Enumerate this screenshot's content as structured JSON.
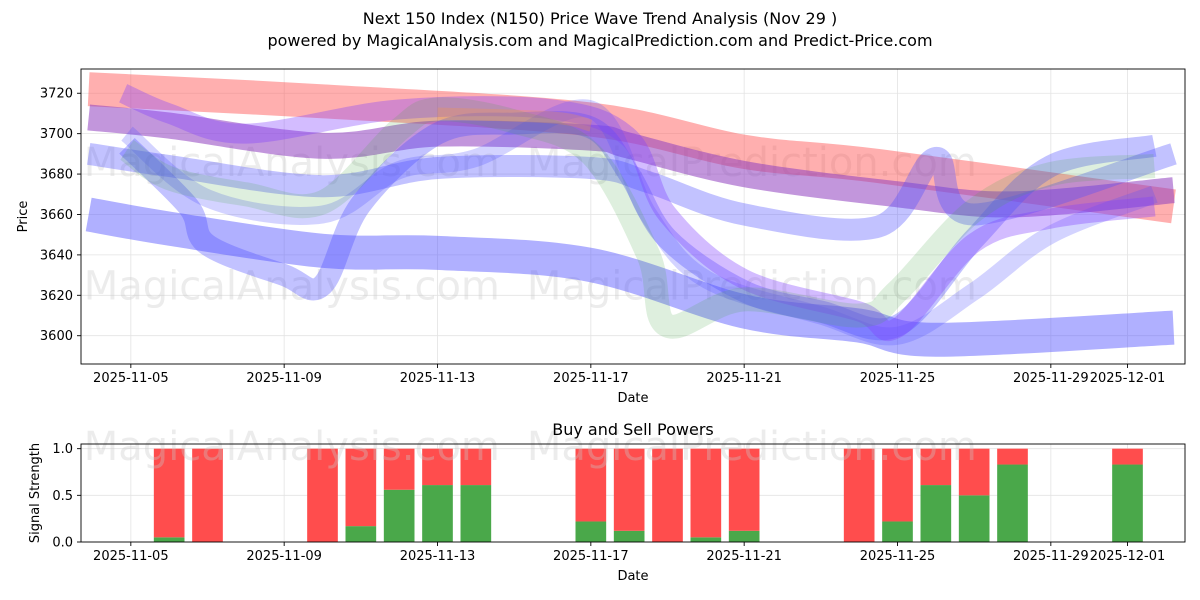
{
  "title": "Next 150 Index (N150) Price Wave Trend Analysis (Nov 29 )",
  "subtitle": "powered by MagicalAnalysis.com and MagicalPrediction.com and Predict-Price.com",
  "watermarks": [
    "MagicalAnalysis.com",
    "MagicalPrediction.com"
  ],
  "colors": {
    "red": "#ff4d4d",
    "green": "#4aa84a",
    "blue": "#5050ff",
    "purple": "#9040c0",
    "lightgreen": "#b8e0b0"
  },
  "chart_data": [
    {
      "type": "line",
      "title": "",
      "xlabel": "Date",
      "ylabel": "Price",
      "xlim": [
        "2025-11-03.7",
        "2025-12-02.5"
      ],
      "ylim": [
        3586,
        3732
      ],
      "x_ticks": [
        "2025-11-05",
        "2025-11-09",
        "2025-11-13",
        "2025-11-17",
        "2025-11-21",
        "2025-11-25",
        "2025-11-29",
        "2025-12-01"
      ],
      "y_ticks": [
        3600,
        3620,
        3640,
        3660,
        3680,
        3700,
        3720
      ],
      "grid": true,
      "series": [
        {
          "name": "red band",
          "color": "#ff4d4d",
          "width": 34,
          "opacity": 0.45,
          "points": [
            [
              "2025-11-03.9",
              3722
            ],
            [
              "2025-11-10",
              3716
            ],
            [
              "2025-11-17",
              3707
            ],
            [
              "2025-11-21",
              3691
            ],
            [
              "2025-11-24.5",
              3684
            ],
            [
              "2025-12-02.2",
              3664
            ]
          ]
        },
        {
          "name": "purple band",
          "color": "#9040c0",
          "width": 26,
          "opacity": 0.55,
          "points": [
            [
              "2025-11-03.9",
              3708
            ],
            [
              "2025-11-06",
              3704
            ],
            [
              "2025-11-10",
              3694
            ],
            [
              "2025-11-13",
              3700
            ],
            [
              "2025-11-17",
              3698
            ],
            [
              "2025-11-18",
              3694
            ],
            [
              "2025-11-21",
              3680
            ],
            [
              "2025-11-25",
              3670
            ],
            [
              "2025-11-28",
              3665
            ],
            [
              "2025-12-02.2",
              3672
            ]
          ]
        },
        {
          "name": "blue wide band",
          "color": "#5050ff",
          "width": 34,
          "opacity": 0.45,
          "points": [
            [
              "2025-11-03.9",
              3660
            ],
            [
              "2025-11-06",
              3653
            ],
            [
              "2025-11-10",
              3642
            ],
            [
              "2025-11-13",
              3641
            ],
            [
              "2025-11-17",
              3635
            ],
            [
              "2025-11-21",
              3612
            ],
            [
              "2025-11-24",
              3605
            ],
            [
              "2025-11-26",
              3598
            ],
            [
              "2025-12-02.2",
              3604
            ]
          ]
        },
        {
          "name": "blue band 2",
          "color": "#5050ff",
          "width": 22,
          "opacity": 0.35,
          "points": [
            [
              "2025-11-03.9",
              3690
            ],
            [
              "2025-11-06",
              3684
            ],
            [
              "2025-11-10",
              3674
            ],
            [
              "2025-11-13",
              3683
            ],
            [
              "2025-11-17",
              3683
            ],
            [
              "2025-11-18.5",
              3676
            ],
            [
              "2025-11-21",
              3660
            ],
            [
              "2025-11-24.5",
              3654
            ],
            [
              "2025-11-26",
              3688
            ],
            [
              "2025-11-27",
              3660
            ],
            [
              "2025-12-02.2",
              3690
            ]
          ]
        },
        {
          "name": "blue wave 1",
          "color": "#5050ff",
          "width": 22,
          "opacity": 0.35,
          "points": [
            [
              "2025-11-04.9",
              3694
            ],
            [
              "2025-11-06.5",
              3664
            ],
            [
              "2025-11-07",
              3645
            ],
            [
              "2025-11-09",
              3630
            ],
            [
              "2025-11-10",
              3625
            ],
            [
              "2025-11-11",
              3665
            ],
            [
              "2025-11-13",
              3700
            ],
            [
              "2025-11-15",
              3705
            ],
            [
              "2025-11-17",
              3703
            ],
            [
              "2025-11-18",
              3680
            ],
            [
              "2025-11-19",
              3648
            ],
            [
              "2025-11-21",
              3622
            ],
            [
              "2025-11-23",
              3612
            ],
            [
              "2025-11-25",
              3605
            ],
            [
              "2025-11-27",
              3648
            ],
            [
              "2025-11-29",
              3684
            ],
            [
              "2025-12-01.7",
              3694
            ]
          ]
        },
        {
          "name": "blue wave 2",
          "color": "#5050ff",
          "width": 18,
          "opacity": 0.25,
          "points": [
            [
              "2025-11-04.9",
              3700
            ],
            [
              "2025-11-07",
              3668
            ],
            [
              "2025-11-10",
              3660
            ],
            [
              "2025-11-12",
              3682
            ],
            [
              "2025-11-14",
              3688
            ],
            [
              "2025-11-17",
              3712
            ],
            [
              "2025-11-18.5",
              3660
            ],
            [
              "2025-11-20",
              3628
            ],
            [
              "2025-11-23",
              3610
            ],
            [
              "2025-11-25",
              3600
            ],
            [
              "2025-11-27",
              3622
            ],
            [
              "2025-11-29",
              3650
            ],
            [
              "2025-12-01.7",
              3670
            ]
          ]
        },
        {
          "name": "purple wave",
          "color": "#8040ff",
          "width": 20,
          "opacity": 0.35,
          "points": [
            [
              "2025-11-04.8",
              3720
            ],
            [
              "2025-11-06",
              3710
            ],
            [
              "2025-11-08",
              3700
            ],
            [
              "2025-11-12",
              3712
            ],
            [
              "2025-11-16",
              3712
            ],
            [
              "2025-11-18",
              3698
            ],
            [
              "2025-11-19",
              3660
            ],
            [
              "2025-11-21",
              3628
            ],
            [
              "2025-11-24",
              3612
            ],
            [
              "2025-11-25",
              3604
            ],
            [
              "2025-11-27",
              3646
            ],
            [
              "2025-11-29",
              3658
            ],
            [
              "2025-12-01.7",
              3664
            ]
          ]
        },
        {
          "name": "green wave",
          "color": "#4aa84a",
          "width": 24,
          "opacity": 0.18,
          "points": [
            [
              "2025-11-04.9",
              3692
            ],
            [
              "2025-11-06",
              3678
            ],
            [
              "2025-11-08",
              3670
            ],
            [
              "2025-11-10",
              3666
            ],
            [
              "2025-11-12",
              3702
            ],
            [
              "2025-11-13",
              3712
            ],
            [
              "2025-11-15",
              3706
            ],
            [
              "2025-11-17",
              3690
            ],
            [
              "2025-11-18.5",
              3640
            ],
            [
              "2025-11-19",
              3605
            ],
            [
              "2025-11-21",
              3618
            ],
            [
              "2025-11-24",
              3610
            ],
            [
              "2025-11-25",
              3622
            ],
            [
              "2025-11-27",
              3662
            ],
            [
              "2025-11-29",
              3680
            ],
            [
              "2025-12-01.7",
              3684
            ]
          ]
        },
        {
          "name": "orange accent",
          "color": "#ff9933",
          "width": 12,
          "opacity": 0.25,
          "points": [
            [
              "2025-11-13",
              3710
            ],
            [
              "2025-11-16",
              3708
            ],
            [
              "2025-11-17",
              3704
            ]
          ]
        }
      ]
    },
    {
      "type": "bar",
      "title": "Buy and Sell Powers",
      "xlabel": "Date",
      "ylabel": "Signal Strength",
      "xlim": [
        "2025-11-03.7",
        "2025-12-02.5"
      ],
      "ylim": [
        0,
        1.05
      ],
      "x_ticks": [
        "2025-11-05",
        "2025-11-09",
        "2025-11-13",
        "2025-11-17",
        "2025-11-21",
        "2025-11-25",
        "2025-11-29",
        "2025-12-01"
      ],
      "y_ticks": [
        0.0,
        0.5,
        1.0
      ],
      "grid": true,
      "stacked": true,
      "categories": [
        "2025-11-06",
        "2025-11-07",
        "2025-11-10",
        "2025-11-11",
        "2025-11-12",
        "2025-11-13",
        "2025-11-14",
        "2025-11-17",
        "2025-11-18",
        "2025-11-19",
        "2025-11-20",
        "2025-11-21",
        "2025-11-24",
        "2025-11-25",
        "2025-11-26",
        "2025-11-27",
        "2025-11-28",
        "2025-12-01"
      ],
      "series": [
        {
          "name": "Buy",
          "color": "#4aa84a",
          "values": [
            0.05,
            0.0,
            0.0,
            0.17,
            0.56,
            0.61,
            0.61,
            0.22,
            0.12,
            0.0,
            0.05,
            0.12,
            0.0,
            0.22,
            0.61,
            0.5,
            0.83,
            0.83
          ]
        },
        {
          "name": "Sell",
          "color": "#ff4d4d",
          "values": [
            0.95,
            1.0,
            1.0,
            0.83,
            0.44,
            0.39,
            0.39,
            0.78,
            0.88,
            1.0,
            0.95,
            0.88,
            1.0,
            0.78,
            0.39,
            0.5,
            0.17,
            0.17
          ]
        }
      ]
    }
  ]
}
